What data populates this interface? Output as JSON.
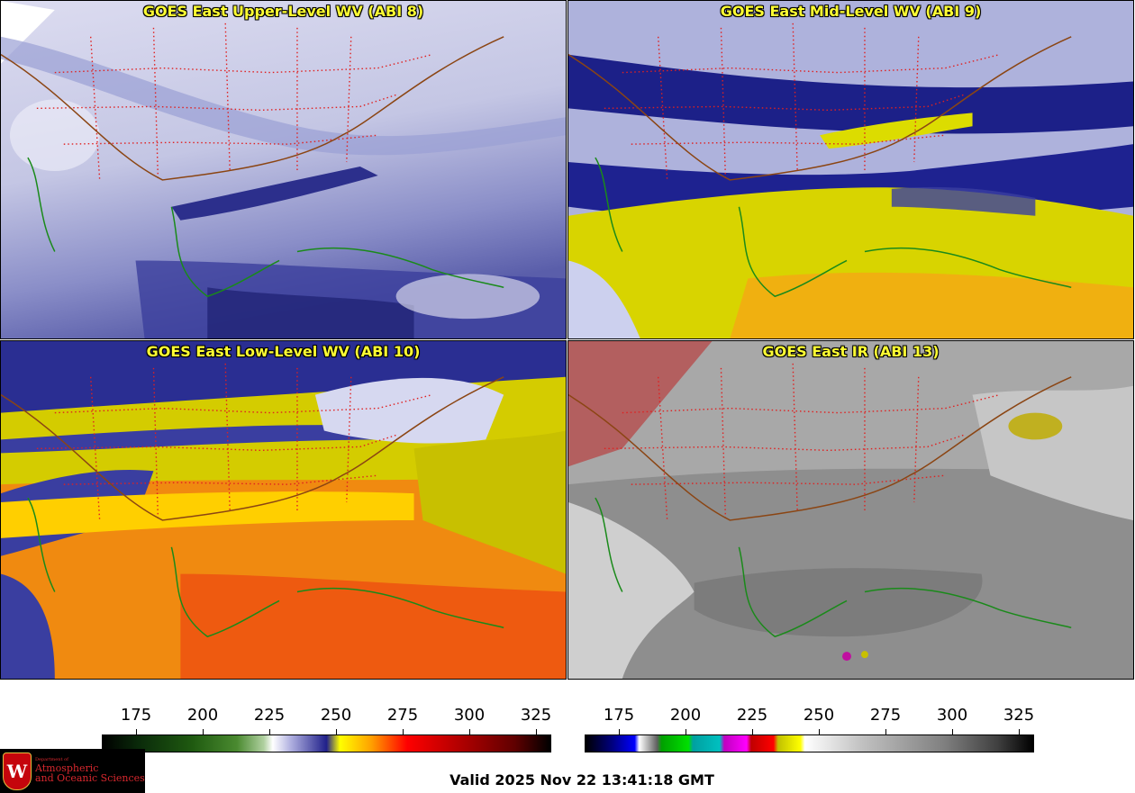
{
  "panels": [
    {
      "title": "GOES East Upper-Level WV (ABI 8)",
      "palette": "wv-upper"
    },
    {
      "title": "GOES East Mid-Level WV (ABI 9)",
      "palette": "wv-mid"
    },
    {
      "title": "GOES East Low-Level WV (ABI 10)",
      "palette": "wv-low"
    },
    {
      "title": "GOES East IR (ABI 13)",
      "palette": "ir"
    }
  ],
  "colorbars": {
    "wv": {
      "ticks": [
        "175",
        "200",
        "225",
        "250",
        "275",
        "300",
        "325"
      ]
    },
    "ir": {
      "ticks": [
        "175",
        "200",
        "225",
        "250",
        "275",
        "300",
        "325"
      ]
    }
  },
  "logo": {
    "crest_letter": "W",
    "department": "Department of",
    "line1": "Atmospheric",
    "line2": "and Oceanic Sciences"
  },
  "valid_time": "Valid 2025 Nov 22 13:41:18 GMT",
  "colors": {
    "title_text": "#ffff33",
    "states": "#e02020",
    "coast": "#1a8a1a",
    "border": "#8b4513"
  }
}
